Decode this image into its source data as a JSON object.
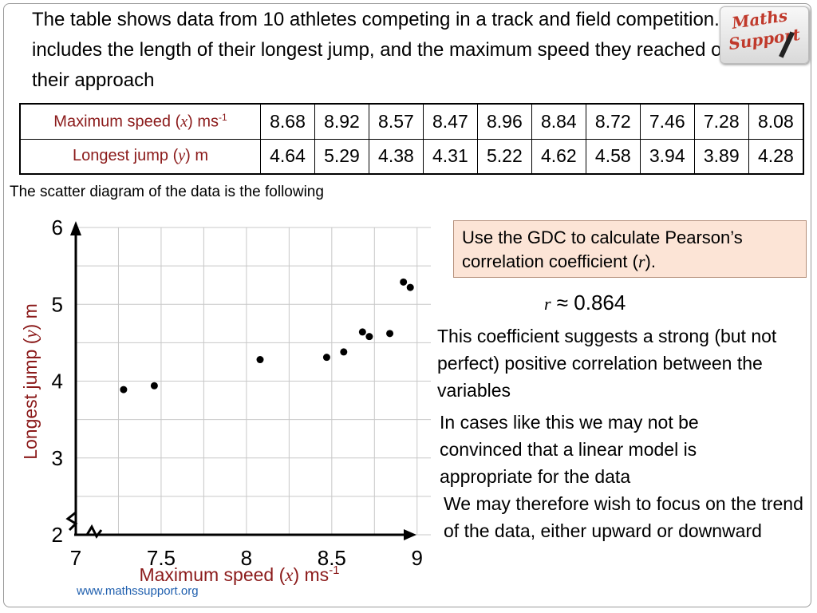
{
  "intro_text": "The table shows data from 10 athletes competing in a track and field competition. It includes the length of their longest jump, and the maximum speed they reached on their approach",
  "logo": {
    "line1": "Maths",
    "line2": "Support"
  },
  "table": {
    "row1_label_pre": "Maximum speed (",
    "row1_label_var": "x",
    "row1_label_post": ") ms",
    "row1_label_sup": "-1",
    "row2_label_pre": "Longest jump (",
    "row2_label_var": "y",
    "row2_label_post": ") m",
    "speed": [
      "8.68",
      "8.92",
      "8.57",
      "8.47",
      "8.96",
      "8.84",
      "8.72",
      "7.46",
      "7.28",
      "8.08"
    ],
    "jump": [
      "4.64",
      "5.29",
      "4.38",
      "4.31",
      "5.22",
      "4.62",
      "4.58",
      "3.94",
      "3.89",
      "4.28"
    ]
  },
  "scatter_intro": "The scatter diagram of the data is the following",
  "callout": {
    "pre": "Use the GDC to calculate Pearson’s correlation coefficient (",
    "var": "r",
    "post": ")."
  },
  "r_value": {
    "var": "r",
    "approx": " ≈ ",
    "value": "0.864"
  },
  "paragraphs": [
    "This coefficient suggests a strong (but not perfect) positive correlation between the variables",
    "In cases like this we may not be convinced that a linear model is appropriate for the data",
    "We may therefore wish to focus on the trend of the data, either upward or downward"
  ],
  "footer": "www.mathssupport.org",
  "colors": {
    "axis_label": "#8b1a1a",
    "callout_bg": "#fce4d6",
    "footer": "#1f5fae"
  },
  "chart_data": {
    "type": "scatter",
    "xlabel": "Maximum speed (x) ms-1",
    "ylabel": "Longest jump (y) m",
    "xlim": [
      7,
      9.25
    ],
    "ylim": [
      2,
      6
    ],
    "xticks": [
      "7",
      "7.5",
      "8",
      "8.5",
      "9"
    ],
    "yticks": [
      "2",
      "3",
      "4",
      "5",
      "6"
    ],
    "axis_breaks": true,
    "grid": true,
    "x": [
      8.68,
      8.92,
      8.57,
      8.47,
      8.96,
      8.84,
      8.72,
      7.46,
      7.28,
      8.08
    ],
    "y": [
      4.64,
      5.29,
      4.38,
      4.31,
      5.22,
      4.62,
      4.58,
      3.94,
      3.89,
      4.28
    ]
  }
}
